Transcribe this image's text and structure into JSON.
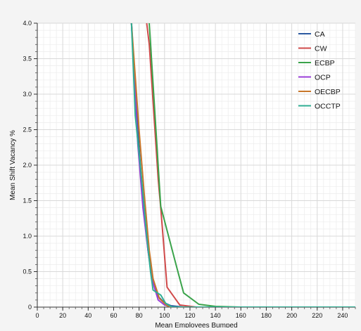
{
  "chart_data": {
    "type": "line",
    "title": "",
    "xlabel": "Mean Employees Bumped",
    "ylabel": "Mean Shift Vacancy %",
    "xlim": [
      0,
      250
    ],
    "ylim": [
      0,
      4.0
    ],
    "x_ticks": [
      0,
      20,
      40,
      60,
      80,
      100,
      120,
      140,
      160,
      180,
      200,
      220,
      240
    ],
    "x_tick_labels": [
      "0",
      "20",
      "40",
      "60",
      "80",
      "100",
      "120",
      "140",
      "160",
      "180",
      "200",
      "220",
      "240"
    ],
    "y_ticks": [
      0,
      0.5,
      1.0,
      1.5,
      2.0,
      2.5,
      3.0,
      3.5,
      4.0
    ],
    "y_tick_labels": [
      "0",
      "0.5",
      "1.0",
      "1.5",
      "2.0",
      "2.5",
      "3.0",
      "3.5",
      "4.0"
    ],
    "grid": true,
    "minor_grid": true,
    "legend_position": "top-right",
    "series": [
      {
        "name": "CA",
        "color": "#2c5aa0",
        "points": [
          [
            74,
            4.0
          ],
          [
            79,
            2.5
          ],
          [
            83,
            1.5
          ],
          [
            87,
            0.8
          ],
          [
            90,
            0.45
          ],
          [
            95,
            0.15
          ],
          [
            100,
            0.06
          ],
          [
            105,
            0.02
          ],
          [
            115,
            0.0
          ],
          [
            250,
            0.0
          ]
        ]
      },
      {
        "name": "CW",
        "color": "#d04a4a",
        "points": [
          [
            86,
            4.0
          ],
          [
            88,
            3.7
          ],
          [
            95,
            1.8
          ],
          [
            97,
            1.4
          ],
          [
            102,
            0.28
          ],
          [
            112,
            0.03
          ],
          [
            125,
            0.0
          ],
          [
            250,
            0.0
          ]
        ]
      },
      {
        "name": "ECBP",
        "color": "#3aa34a",
        "points": [
          [
            88,
            4.0
          ],
          [
            97,
            1.42
          ],
          [
            109,
            0.6
          ],
          [
            115,
            0.2
          ],
          [
            127,
            0.04
          ],
          [
            140,
            0.01
          ],
          [
            160,
            0.0
          ],
          [
            250,
            0.0
          ]
        ]
      },
      {
        "name": "OCP",
        "color": "#9b3fd9",
        "points": [
          [
            74,
            4.0
          ],
          [
            79,
            2.3
          ],
          [
            83,
            1.4
          ],
          [
            87,
            0.8
          ],
          [
            90,
            0.4
          ],
          [
            95,
            0.1
          ],
          [
            100,
            0.03
          ],
          [
            106,
            0.0
          ],
          [
            250,
            0.0
          ]
        ]
      },
      {
        "name": "OECBP",
        "color": "#c8772a",
        "points": [
          [
            74,
            4.0
          ],
          [
            80,
            2.5
          ],
          [
            84,
            1.6
          ],
          [
            88,
            0.8
          ],
          [
            91,
            0.4
          ],
          [
            96,
            0.12
          ],
          [
            102,
            0.02
          ],
          [
            106,
            0.0
          ],
          [
            250,
            0.0
          ]
        ]
      },
      {
        "name": "OCCTP",
        "color": "#2fae93",
        "points": [
          [
            74,
            4.0
          ],
          [
            77,
            2.7
          ],
          [
            82,
            1.8
          ],
          [
            86,
            1.0
          ],
          [
            89,
            0.5
          ],
          [
            91,
            0.24
          ],
          [
            97,
            0.17
          ],
          [
            101,
            0.05
          ],
          [
            106,
            0.0
          ],
          [
            250,
            0.0
          ]
        ]
      }
    ]
  }
}
